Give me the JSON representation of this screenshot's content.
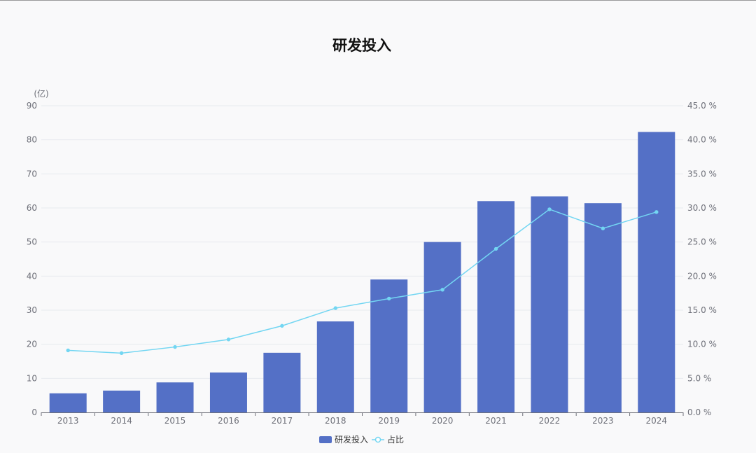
{
  "chart_data": {
    "type": "bar",
    "title": "研发投入",
    "y_unit_label": "(亿)",
    "categories": [
      "2013",
      "2014",
      "2015",
      "2016",
      "2017",
      "2018",
      "2019",
      "2020",
      "2021",
      "2022",
      "2023",
      "2024"
    ],
    "series": [
      {
        "name": "研发投入",
        "type": "bar",
        "axis": "left",
        "values": [
          5.6,
          6.4,
          8.8,
          11.7,
          17.5,
          26.7,
          39.0,
          50.0,
          62.0,
          63.4,
          61.4,
          82.3
        ]
      },
      {
        "name": "占比",
        "type": "line",
        "axis": "right",
        "values": [
          9.1,
          8.7,
          9.6,
          10.7,
          12.7,
          15.3,
          16.7,
          18.0,
          24.0,
          29.8,
          27.0,
          29.4
        ]
      }
    ],
    "y_left": {
      "min": 0,
      "max": 90,
      "ticks": [
        "0",
        "10",
        "20",
        "30",
        "40",
        "50",
        "60",
        "70",
        "80",
        "90"
      ]
    },
    "y_right": {
      "min": 0,
      "max": 45,
      "ticks": [
        "0.0 %",
        "5.0 %",
        "10.0 %",
        "15.0 %",
        "20.0 %",
        "25.0 %",
        "30.0 %",
        "35.0 %",
        "40.0 %",
        "45.0 %"
      ]
    },
    "grid": true,
    "legend_position": "bottom-center",
    "colors": {
      "bar": "#5470c6",
      "line": "#73d6f2",
      "grid": "#e8eaef",
      "axis_line": "#6e7079",
      "text": "#6e7079"
    }
  }
}
